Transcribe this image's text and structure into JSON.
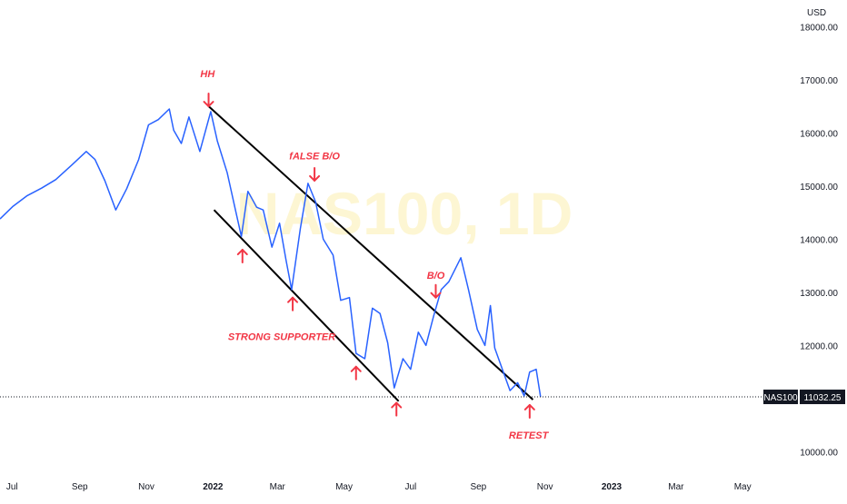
{
  "chart_data": {
    "type": "line",
    "symbol": "NAS100",
    "interval": "1D",
    "currency": "USD",
    "last_price": "11032.25",
    "watermark": "NAS100, 1D",
    "ylim": [
      9700,
      18500
    ],
    "y_ticks": [
      "18000.00",
      "17000.00",
      "16000.00",
      "15000.00",
      "14000.00",
      "13000.00",
      "12000.00",
      "10000.00"
    ],
    "x_ticks": [
      {
        "label": "Jul",
        "date": "2021-07-01"
      },
      {
        "label": "Sep",
        "date": "2021-09-01"
      },
      {
        "label": "Nov",
        "date": "2021-11-01"
      },
      {
        "label": "2022",
        "date": "2022-01-01",
        "bold": true
      },
      {
        "label": "Mar",
        "date": "2022-03-01"
      },
      {
        "label": "May",
        "date": "2022-05-01"
      },
      {
        "label": "Jul",
        "date": "2022-07-01"
      },
      {
        "label": "Sep",
        "date": "2022-09-01"
      },
      {
        "label": "Nov",
        "date": "2022-11-01"
      },
      {
        "label": "2023",
        "date": "2023-01-01",
        "bold": true
      },
      {
        "label": "Mar",
        "date": "2023-03-01"
      },
      {
        "label": "May",
        "date": "2023-05-01"
      }
    ],
    "xlim": [
      "2021-06-20",
      "2023-05-20"
    ],
    "series": [
      {
        "color": "#2962ff",
        "points": [
          [
            "2021-06-20",
            14380
          ],
          [
            "2021-07-02",
            14620
          ],
          [
            "2021-07-15",
            14820
          ],
          [
            "2021-07-28",
            14960
          ],
          [
            "2021-08-10",
            15120
          ],
          [
            "2021-08-25",
            15400
          ],
          [
            "2021-09-07",
            15650
          ],
          [
            "2021-09-15",
            15500
          ],
          [
            "2021-09-24",
            15100
          ],
          [
            "2021-10-04",
            14550
          ],
          [
            "2021-10-14",
            14950
          ],
          [
            "2021-10-25",
            15500
          ],
          [
            "2021-11-03",
            16150
          ],
          [
            "2021-11-12",
            16250
          ],
          [
            "2021-11-22",
            16450
          ],
          [
            "2021-11-26",
            16050
          ],
          [
            "2021-12-03",
            15800
          ],
          [
            "2021-12-10",
            16300
          ],
          [
            "2021-12-20",
            15650
          ],
          [
            "2021-12-30",
            16400
          ],
          [
            "2022-01-05",
            15850
          ],
          [
            "2022-01-14",
            15250
          ],
          [
            "2022-01-21",
            14600
          ],
          [
            "2022-01-27",
            14050
          ],
          [
            "2022-02-02",
            14900
          ],
          [
            "2022-02-10",
            14600
          ],
          [
            "2022-02-16",
            14550
          ],
          [
            "2022-02-24",
            13850
          ],
          [
            "2022-03-03",
            14300
          ],
          [
            "2022-03-09",
            13600
          ],
          [
            "2022-03-14",
            13050
          ],
          [
            "2022-03-22",
            14200
          ],
          [
            "2022-03-29",
            15050
          ],
          [
            "2022-04-05",
            14700
          ],
          [
            "2022-04-12",
            14000
          ],
          [
            "2022-04-21",
            13700
          ],
          [
            "2022-04-28",
            12850
          ],
          [
            "2022-05-06",
            12900
          ],
          [
            "2022-05-12",
            11850
          ],
          [
            "2022-05-20",
            11750
          ],
          [
            "2022-05-27",
            12700
          ],
          [
            "2022-06-03",
            12600
          ],
          [
            "2022-06-10",
            12050
          ],
          [
            "2022-06-16",
            11200
          ],
          [
            "2022-06-24",
            11750
          ],
          [
            "2022-07-01",
            11550
          ],
          [
            "2022-07-08",
            12250
          ],
          [
            "2022-07-15",
            12000
          ],
          [
            "2022-07-22",
            12550
          ],
          [
            "2022-07-29",
            13050
          ],
          [
            "2022-08-05",
            13200
          ],
          [
            "2022-08-16",
            13650
          ],
          [
            "2022-08-23",
            13050
          ],
          [
            "2022-08-31",
            12300
          ],
          [
            "2022-09-07",
            12000
          ],
          [
            "2022-09-12",
            12750
          ],
          [
            "2022-09-16",
            11950
          ],
          [
            "2022-09-23",
            11550
          ],
          [
            "2022-09-30",
            11150
          ],
          [
            "2022-10-07",
            11300
          ],
          [
            "2022-10-13",
            11050
          ],
          [
            "2022-10-18",
            11500
          ],
          [
            "2022-10-24",
            11550
          ],
          [
            "2022-10-28",
            11032
          ]
        ]
      }
    ],
    "trendlines": [
      {
        "name": "upper-channel-line",
        "from": [
          "2021-12-28",
          16500
        ],
        "to": [
          "2022-10-21",
          10980
        ]
      },
      {
        "name": "lower-channel-line",
        "from": [
          "2022-01-02",
          14550
        ],
        "to": [
          "2022-06-20",
          10950
        ]
      }
    ],
    "annotations": [
      {
        "text": "HH",
        "at": [
          "2021-12-27",
          17050
        ]
      },
      {
        "text": "fALSE B/O",
        "at": [
          "2022-04-04",
          15500
        ]
      },
      {
        "text": "B/O",
        "at": [
          "2022-07-24",
          13250
        ]
      },
      {
        "text": "STRONG SUPPORTER",
        "at": [
          "2022-03-05",
          12100
        ]
      },
      {
        "text": "RETEST",
        "at": [
          "2022-10-17",
          10250
        ]
      }
    ],
    "arrows": [
      {
        "dir": "down",
        "at": [
          "2021-12-28",
          16500
        ]
      },
      {
        "dir": "down",
        "at": [
          "2022-04-04",
          15100
        ]
      },
      {
        "dir": "down",
        "at": [
          "2022-07-24",
          12900
        ]
      },
      {
        "dir": "up",
        "at": [
          "2022-01-28",
          13800
        ]
      },
      {
        "dir": "up",
        "at": [
          "2022-03-15",
          12900
        ]
      },
      {
        "dir": "up",
        "at": [
          "2022-05-12",
          11600
        ]
      },
      {
        "dir": "up",
        "at": [
          "2022-06-18",
          10920
        ]
      },
      {
        "dir": "up",
        "at": [
          "2022-10-18",
          10880
        ]
      }
    ]
  }
}
